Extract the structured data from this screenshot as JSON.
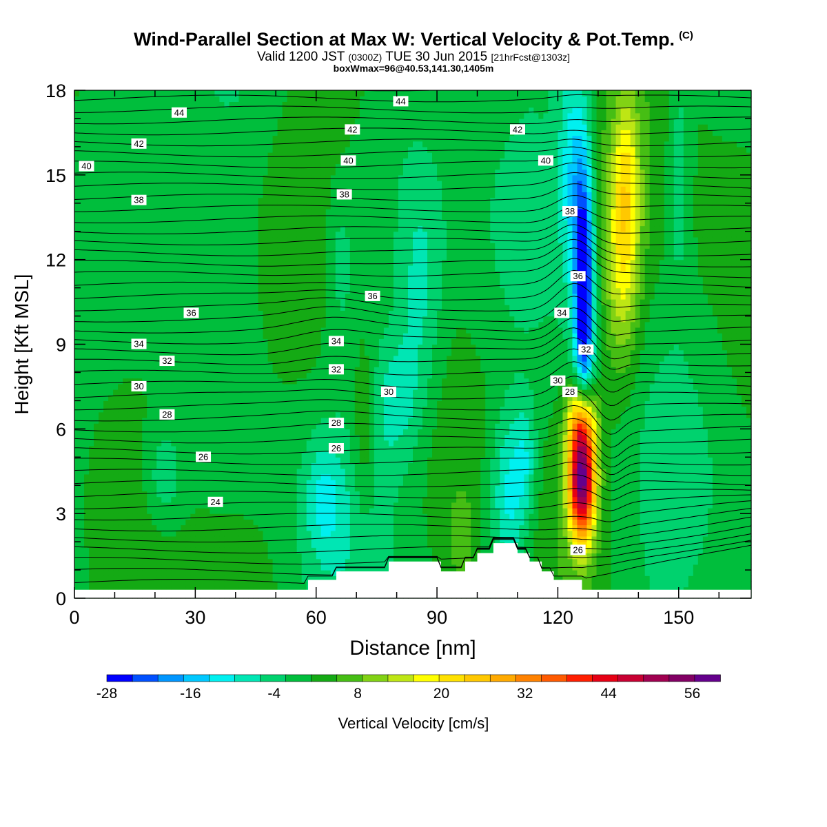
{
  "chart_data": {
    "type": "heatmap",
    "title": "Wind-Parallel Section at Max W: Vertical Velocity & Pot.Temp.",
    "title_tag": "(C)",
    "subtitle_parts": [
      "Valid 1200 JST ",
      "(0300Z)",
      " TUE 30 Jun 2015 ",
      "[21hrFcst@1303z]"
    ],
    "subtitle2": "boxWmax=96@40.53,141.30,1405m",
    "xlabel": "Distance [nm]",
    "ylabel": "Height [Kft MSL]",
    "xlim": [
      0,
      168
    ],
    "ylim": [
      0,
      18
    ],
    "x_ticks": [
      "0",
      "30",
      "60",
      "90",
      "120",
      "150"
    ],
    "y_ticks": [
      "0",
      "3",
      "6",
      "9",
      "12",
      "15",
      "18"
    ],
    "colorbar": {
      "label": "Vertical Velocity [cm/s]",
      "tick_labels": [
        "-28",
        "-16",
        "-4",
        "8",
        "20",
        "32",
        "44",
        "56"
      ],
      "levels": [
        -28,
        60
      ],
      "colors": [
        "#0000ff",
        "#0050ff",
        "#0096ff",
        "#00c8ff",
        "#00f0f0",
        "#00e6b4",
        "#00d26e",
        "#00be3c",
        "#14aa14",
        "#46be14",
        "#82d214",
        "#bee614",
        "#ffff00",
        "#ffe100",
        "#ffc800",
        "#ffaa00",
        "#ff8200",
        "#ff5a00",
        "#ff1e00",
        "#e60014",
        "#c80032",
        "#a00050",
        "#820064",
        "#64008c"
      ]
    },
    "features": {
      "updraft_core_max": 60,
      "updraft_x": 126,
      "downdraft_min": -28,
      "downdraft_x": 126.5
    },
    "theta_labels": [
      {
        "x": 26,
        "y": 17.2,
        "v": "44"
      },
      {
        "x": 81,
        "y": 17.6,
        "v": "44"
      },
      {
        "x": 16,
        "y": 16.1,
        "v": "42"
      },
      {
        "x": 69,
        "y": 16.6,
        "v": "42"
      },
      {
        "x": 110,
        "y": 16.6,
        "v": "42"
      },
      {
        "x": 3,
        "y": 15.3,
        "v": "40"
      },
      {
        "x": 68,
        "y": 15.5,
        "v": "40"
      },
      {
        "x": 117,
        "y": 15.5,
        "v": "40"
      },
      {
        "x": 16,
        "y": 14.1,
        "v": "38"
      },
      {
        "x": 67,
        "y": 14.3,
        "v": "38"
      },
      {
        "x": 123,
        "y": 13.7,
        "v": "38"
      },
      {
        "x": 29,
        "y": 10.1,
        "v": "36"
      },
      {
        "x": 74,
        "y": 10.7,
        "v": "36"
      },
      {
        "x": 125,
        "y": 11.4,
        "v": "36"
      },
      {
        "x": 16,
        "y": 9.0,
        "v": "34"
      },
      {
        "x": 65,
        "y": 9.1,
        "v": "34"
      },
      {
        "x": 121,
        "y": 10.1,
        "v": "34"
      },
      {
        "x": 23,
        "y": 8.4,
        "v": "32"
      },
      {
        "x": 65,
        "y": 8.1,
        "v": "32"
      },
      {
        "x": 127,
        "y": 8.8,
        "v": "32"
      },
      {
        "x": 16,
        "y": 7.5,
        "v": "30"
      },
      {
        "x": 78,
        "y": 7.3,
        "v": "30"
      },
      {
        "x": 120,
        "y": 7.7,
        "v": "30"
      },
      {
        "x": 23,
        "y": 6.5,
        "v": "28"
      },
      {
        "x": 65,
        "y": 6.2,
        "v": "28"
      },
      {
        "x": 123,
        "y": 7.3,
        "v": "28"
      },
      {
        "x": 32,
        "y": 5.0,
        "v": "26"
      },
      {
        "x": 65,
        "y": 5.3,
        "v": "26"
      },
      {
        "x": 125,
        "y": 1.7,
        "v": "26"
      },
      {
        "x": 35,
        "y": 3.4,
        "v": "24"
      }
    ],
    "terrain": [
      [
        55,
        0.3
      ],
      [
        58,
        0.3
      ],
      [
        58,
        0.65
      ],
      [
        65,
        0.65
      ],
      [
        65,
        0.95
      ],
      [
        78,
        0.95
      ],
      [
        78,
        1.3
      ],
      [
        91,
        1.3
      ],
      [
        91,
        0.95
      ],
      [
        97,
        0.95
      ],
      [
        97,
        1.3
      ],
      [
        100,
        1.3
      ],
      [
        100,
        1.6
      ],
      [
        104,
        1.6
      ],
      [
        104,
        1.95
      ],
      [
        110,
        1.95
      ],
      [
        110,
        1.6
      ],
      [
        113,
        1.6
      ],
      [
        113,
        1.3
      ],
      [
        116,
        1.3
      ],
      [
        116,
        0.95
      ],
      [
        119,
        0.95
      ],
      [
        119,
        0.65
      ],
      [
        126,
        0.65
      ],
      [
        126,
        0.3
      ]
    ]
  }
}
